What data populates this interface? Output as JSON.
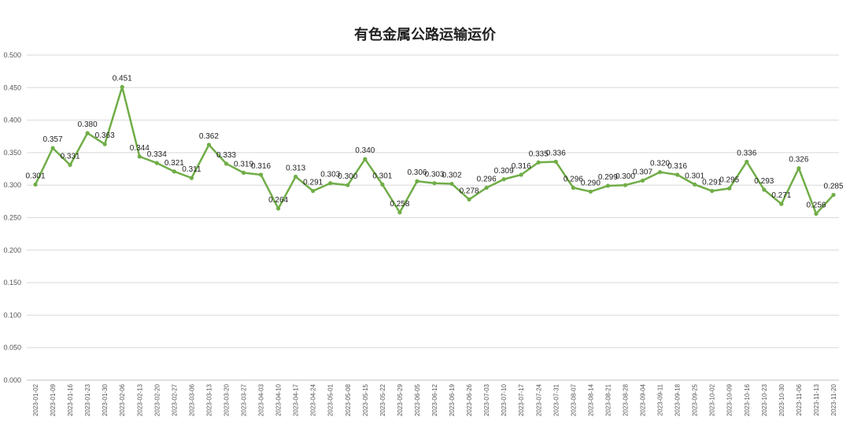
{
  "chart_data": {
    "type": "line",
    "title": "有色金属公路运输运价",
    "xlabel": "",
    "ylabel": "",
    "ylim": [
      0,
      0.5
    ],
    "yticks": [
      "0.000",
      "0.050",
      "0.100",
      "0.150",
      "0.200",
      "0.250",
      "0.300",
      "0.350",
      "0.400",
      "0.450",
      "0.500"
    ],
    "grid": true,
    "color": "#70AD47",
    "categories": [
      "2023-01-02",
      "2023-01-09",
      "2023-01-16",
      "2023-01-23",
      "2023-01-30",
      "2023-02-06",
      "2023-02-13",
      "2023-02-20",
      "2023-02-27",
      "2023-03-06",
      "2023-03-13",
      "2023-03-20",
      "2023-03-27",
      "2023-04-03",
      "2023-04-10",
      "2023-04-17",
      "2023-04-24",
      "2023-05-01",
      "2023-05-08",
      "2023-05-15",
      "2023-05-22",
      "2023-05-29",
      "2023-06-05",
      "2023-06-12",
      "2023-06-19",
      "2023-06-26",
      "2023-07-03",
      "2023-07-10",
      "2023-07-17",
      "2023-07-24",
      "2023-07-31",
      "2023-08-07",
      "2023-08-14",
      "2023-08-21",
      "2023-08-28",
      "2023-09-04",
      "2023-09-11",
      "2023-09-18",
      "2023-09-25",
      "2023-10-02",
      "2023-10-09",
      "2023-10-16",
      "2023-10-23",
      "2023-10-30",
      "2023-11-06",
      "2023-11-13",
      "2023-11-20"
    ],
    "series": [
      {
        "values": [
          0.301,
          0.357,
          0.331,
          0.38,
          0.363,
          0.451,
          0.344,
          0.334,
          0.321,
          0.311,
          0.362,
          0.333,
          0.319,
          0.316,
          0.264,
          0.313,
          0.291,
          0.303,
          0.3,
          0.34,
          0.301,
          0.258,
          0.306,
          0.303,
          0.302,
          0.278,
          0.296,
          0.309,
          0.316,
          0.335,
          0.336,
          0.296,
          0.29,
          0.299,
          0.3,
          0.307,
          0.32,
          0.316,
          0.301,
          0.291,
          0.295,
          0.336,
          0.293,
          0.271,
          0.326,
          0.256,
          0.285
        ],
        "labels": [
          "0.301",
          "0.357",
          "0.331",
          "0.380",
          "0.363",
          "0.451",
          "0.344",
          "0.334",
          "0.321",
          "0.311",
          "0.362",
          "0.333",
          "0.319",
          "0.316",
          "0.264",
          "0.313",
          "0.291",
          "0.303",
          "0.300",
          "0.340",
          "0.301",
          "0.258",
          "0.306",
          "0.303",
          "0.302",
          "0.278",
          "0.296",
          "0.309",
          "0.316",
          "0.335",
          "0.336",
          "0.296",
          "0.290",
          "0.299",
          "0.300",
          "0.307",
          "0.320",
          "0.316",
          "0.301",
          "0.291",
          "0.295",
          "0.336",
          "0.293",
          "0.271",
          "0.326",
          "0.256",
          "0.285"
        ]
      }
    ]
  }
}
